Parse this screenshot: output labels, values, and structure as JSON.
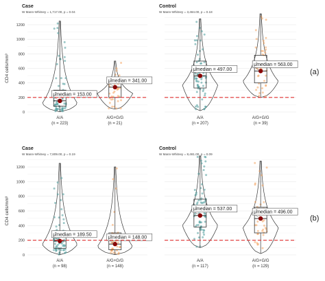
{
  "figure_labels": [
    "(a)",
    "(b)"
  ],
  "colors": {
    "group1": "#4a9a9a",
    "group2": "#f4a460",
    "median_dot": "#8b0000",
    "threshold": "#e03030"
  },
  "chart_data": [
    {
      "type": "violin-box-scatter",
      "panel": "a",
      "side": "left",
      "title": "Case",
      "subtitle": "W Mann-Whitney = 1,717.00, p = 0.04",
      "ylabel": "CD4 cells/mm³",
      "ylim": [
        0,
        1200
      ],
      "yticks": [
        0,
        200,
        400,
        600,
        800,
        1000,
        1200
      ],
      "threshold": 200,
      "grid": true,
      "groups": [
        {
          "name": "A/A",
          "n_label": "(n = 223)",
          "median": 153.0,
          "median_label": "μ̂median = 153.00",
          "q1": 80,
          "q3": 300,
          "min": 5,
          "max": 1250,
          "color": "#4a9a9a"
        },
        {
          "name": "A/G+G/G",
          "n_label": "(n = 21)",
          "median": 341.0,
          "median_label": "μ̂median = 341.00",
          "q1": 200,
          "q3": 460,
          "min": 40,
          "max": 700,
          "color": "#f4a460"
        }
      ]
    },
    {
      "type": "violin-box-scatter",
      "panel": "a",
      "side": "right",
      "title": "Control",
      "subtitle": "W Mann-Whitney = 3,484.00, p = 0.18",
      "ylabel": "",
      "ylim": [
        0,
        1200
      ],
      "yticks": [],
      "threshold": 200,
      "grid": true,
      "groups": [
        {
          "name": "A/A",
          "n_label": "(n = 207)",
          "median": 497.0,
          "median_label": "μ̂median = 497.00",
          "q1": 330,
          "q3": 700,
          "min": 20,
          "max": 1280,
          "color": "#4a9a9a"
        },
        {
          "name": "A/G+G/G",
          "n_label": "(n = 39)",
          "median": 563.0,
          "median_label": "μ̂median = 563.00",
          "q1": 400,
          "q3": 780,
          "min": 200,
          "max": 1350,
          "color": "#f4a460"
        }
      ]
    },
    {
      "type": "violin-box-scatter",
      "panel": "b",
      "side": "left",
      "title": "Case",
      "subtitle": "W Mann-Whitney = 7,809.00, p = 0.19",
      "ylabel": "CD4 cells/mm³",
      "ylim": [
        0,
        1200
      ],
      "yticks": [
        0,
        200,
        400,
        600,
        800,
        1000,
        1200
      ],
      "threshold": 200,
      "grid": true,
      "groups": [
        {
          "name": "A/A",
          "n_label": "(n = 98)",
          "median": 189.5,
          "median_label": "μ̂median = 189.50",
          "q1": 90,
          "q3": 330,
          "min": 5,
          "max": 1250,
          "color": "#4a9a9a"
        },
        {
          "name": "A/G+G/G",
          "n_label": "(n = 148)",
          "median": 148.0,
          "median_label": "μ̂median = 148.00",
          "q1": 70,
          "q3": 300,
          "min": 5,
          "max": 1200,
          "color": "#f4a460"
        }
      ]
    },
    {
      "type": "violin-box-scatter",
      "panel": "b",
      "side": "right",
      "title": "Control",
      "subtitle": "W Mann-Whitney = 8,481.00, p = 0.09",
      "ylabel": "",
      "ylim": [
        0,
        1200
      ],
      "yticks": [],
      "threshold": 200,
      "grid": true,
      "groups": [
        {
          "name": "A/A",
          "n_label": "(n = 117)",
          "median": 537.0,
          "median_label": "μ̂median = 537.00",
          "q1": 380,
          "q3": 760,
          "min": 100,
          "max": 1350,
          "color": "#4a9a9a"
        },
        {
          "name": "A/G+G/G",
          "n_label": "(n = 129)",
          "median": 496.0,
          "median_label": "μ̂median = 496.00",
          "q1": 300,
          "q3": 650,
          "min": 20,
          "max": 1280,
          "color": "#f4a460"
        }
      ]
    }
  ]
}
